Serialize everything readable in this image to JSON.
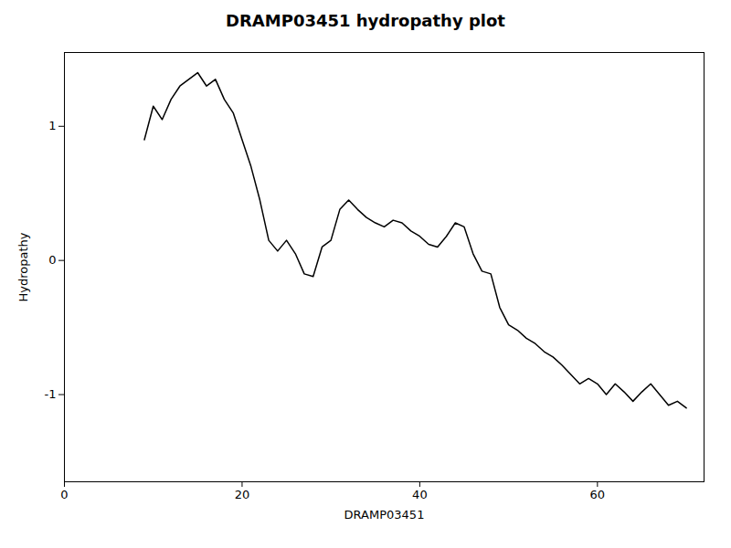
{
  "chart_data": {
    "type": "line",
    "title": "DRAMP03451 hydropathy plot",
    "xlabel": "DRAMP03451",
    "ylabel": "Hydropathy",
    "x": [
      9,
      10,
      11,
      12,
      13,
      14,
      15,
      16,
      17,
      18,
      19,
      20,
      21,
      22,
      23,
      24,
      25,
      26,
      27,
      28,
      29,
      30,
      31,
      32,
      33,
      34,
      35,
      36,
      37,
      38,
      39,
      40,
      41,
      42,
      43,
      44,
      45,
      46,
      47,
      48,
      49,
      50,
      51,
      52,
      53,
      54,
      55,
      56,
      57,
      58,
      59,
      60,
      61,
      62,
      63,
      64,
      65,
      66,
      67,
      68,
      69,
      70
    ],
    "values": [
      0.9,
      1.15,
      1.05,
      1.2,
      1.3,
      1.35,
      1.4,
      1.3,
      1.35,
      1.2,
      1.1,
      0.9,
      0.7,
      0.45,
      0.15,
      0.07,
      0.15,
      0.05,
      -0.1,
      -0.12,
      0.1,
      0.15,
      0.38,
      0.45,
      0.38,
      0.32,
      0.28,
      0.25,
      0.3,
      0.28,
      0.22,
      0.18,
      0.12,
      0.1,
      0.18,
      0.28,
      0.25,
      0.05,
      -0.08,
      -0.1,
      -0.35,
      -0.48,
      -0.52,
      -0.58,
      -0.62,
      -0.68,
      -0.72,
      -0.78,
      -0.85,
      -0.92,
      -0.88,
      -0.92,
      -1.0,
      -0.92,
      -0.98,
      -1.05,
      -0.98,
      -0.92,
      -1.0,
      -1.08,
      -1.05,
      -1.1
    ],
    "color": "#000000",
    "xlim": [
      0,
      72
    ],
    "ylim": [
      -1.65,
      1.55
    ],
    "xticks": [
      0,
      20,
      40,
      60
    ],
    "yticks": [
      -1,
      0,
      1
    ],
    "grid": false
  }
}
